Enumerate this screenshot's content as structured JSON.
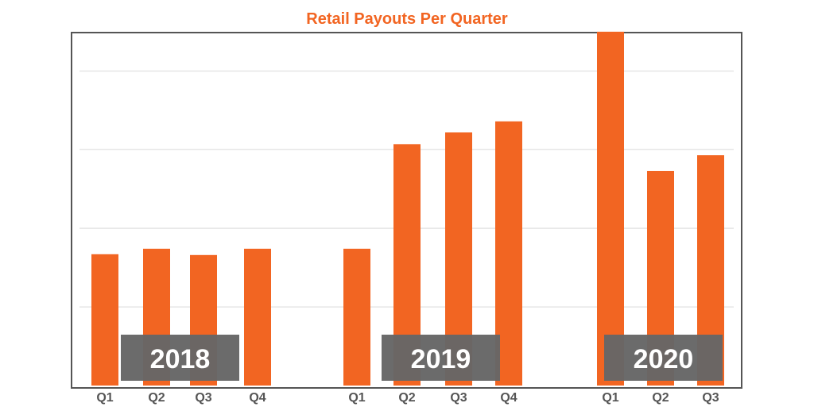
{
  "chart_data": {
    "type": "bar",
    "title": "Retail Payouts Per Quarter",
    "xlabel": "",
    "ylabel": "",
    "ylim": [
      0,
      4.6
    ],
    "grid": true,
    "legend": "none",
    "groups": [
      {
        "label": "2018",
        "categories": [
          "Q1",
          "Q2",
          "Q3",
          "Q4"
        ],
        "values": [
          1.67,
          1.74,
          1.66,
          1.74
        ]
      },
      {
        "label": "2019",
        "categories": [
          "Q1",
          "Q2",
          "Q3",
          "Q4"
        ],
        "values": [
          1.74,
          3.07,
          3.22,
          3.36
        ]
      },
      {
        "label": "2020",
        "categories": [
          "Q1",
          "Q2",
          "Q3"
        ],
        "values": [
          4.5,
          2.73,
          2.93
        ]
      }
    ]
  },
  "colors": {
    "bar": "#F26522",
    "title": "#F26522",
    "year_box": "#666666",
    "grid": "#e6e6e6",
    "frame": "#555555"
  }
}
